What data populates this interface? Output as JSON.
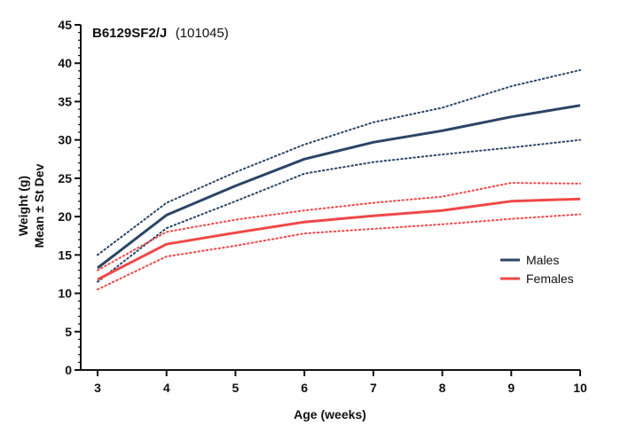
{
  "chart_data": {
    "type": "line",
    "title": "B6129SF2/J",
    "title_suffix": "(101045)",
    "xlabel": "Age (weeks)",
    "ylabel_line1": "Weight (g)",
    "ylabel_line2": "Mean ± St Dev",
    "categories": [
      "3",
      "4",
      "5",
      "6",
      "7",
      "8",
      "9",
      "10"
    ],
    "yticks": [
      "0",
      "5",
      "10",
      "15",
      "20",
      "25",
      "30",
      "35",
      "40",
      "45"
    ],
    "ylim": [
      0,
      45
    ],
    "legend_position": "right-middle",
    "series": [
      {
        "name": "Males",
        "color": "#2b4566",
        "mean": [
          13.3,
          20.2,
          24.0,
          27.5,
          29.7,
          31.2,
          33.0,
          34.5
        ],
        "upper": [
          15.0,
          21.8,
          25.8,
          29.4,
          32.3,
          34.2,
          37.0,
          39.1
        ],
        "lower": [
          11.5,
          18.5,
          22.0,
          25.6,
          27.1,
          28.1,
          29.0,
          30.0
        ]
      },
      {
        "name": "Females",
        "color": "#ef4848",
        "mean": [
          11.8,
          16.4,
          17.9,
          19.3,
          20.1,
          20.8,
          22.0,
          22.3
        ],
        "upper": [
          13.0,
          18.0,
          19.6,
          20.8,
          21.8,
          22.6,
          24.4,
          24.3
        ],
        "lower": [
          10.5,
          14.8,
          16.2,
          17.8,
          18.4,
          19.0,
          19.7,
          20.3
        ]
      }
    ]
  }
}
